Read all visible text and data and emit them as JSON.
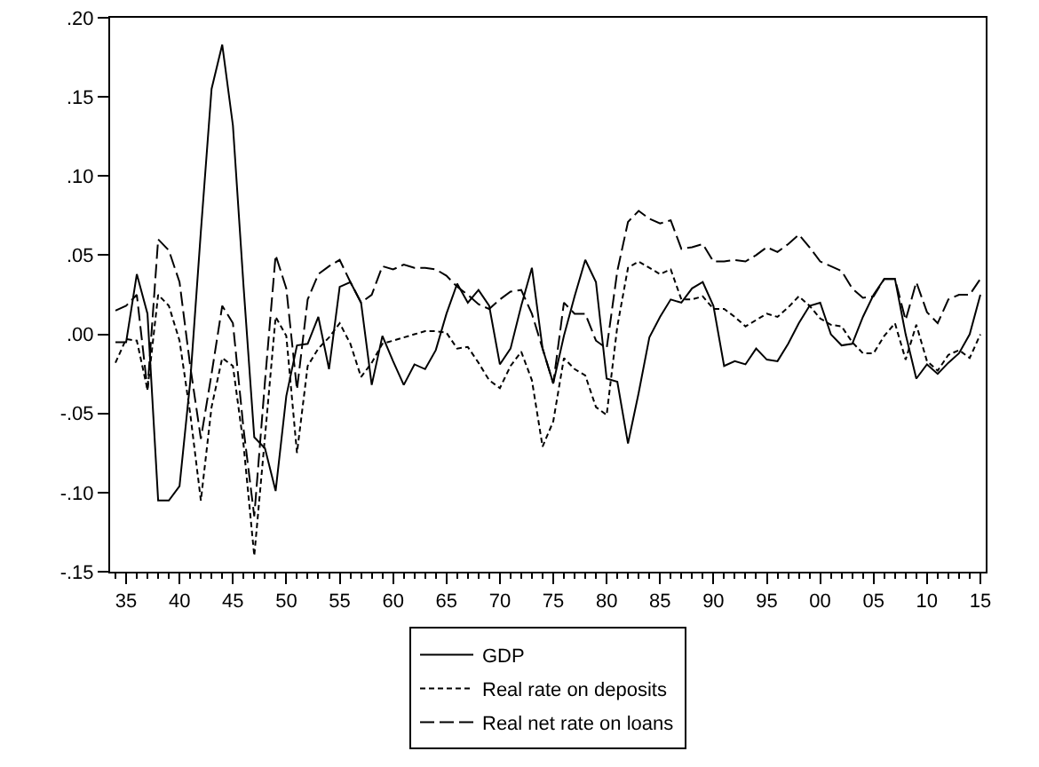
{
  "chart_data": {
    "type": "line",
    "x": [
      1934,
      1935,
      1936,
      1937,
      1938,
      1939,
      1940,
      1941,
      1942,
      1943,
      1944,
      1945,
      1946,
      1947,
      1948,
      1949,
      1950,
      1951,
      1952,
      1953,
      1954,
      1955,
      1956,
      1957,
      1958,
      1959,
      1960,
      1961,
      1962,
      1963,
      1964,
      1965,
      1966,
      1967,
      1968,
      1969,
      1970,
      1971,
      1972,
      1973,
      1974,
      1975,
      1976,
      1977,
      1978,
      1979,
      1980,
      1981,
      1982,
      1983,
      1984,
      1985,
      1986,
      1987,
      1988,
      1989,
      1990,
      1991,
      1992,
      1993,
      1994,
      1995,
      1996,
      1997,
      1998,
      1999,
      2000,
      2001,
      2002,
      2003,
      2004,
      2005,
      2006,
      2007,
      2008,
      2009,
      2010,
      2011,
      2012,
      2013,
      2014,
      2015
    ],
    "series": [
      {
        "name": "GDP",
        "color": "#000000",
        "line_style": "solid",
        "values": [
          -0.005,
          -0.005,
          0.038,
          0.013,
          -0.105,
          -0.105,
          -0.096,
          -0.03,
          0.065,
          0.155,
          0.183,
          0.132,
          0.03,
          -0.065,
          -0.072,
          -0.099,
          -0.039,
          -0.007,
          -0.006,
          0.011,
          -0.022,
          0.03,
          0.033,
          0.02,
          -0.032,
          -0.001,
          -0.017,
          -0.032,
          -0.019,
          -0.022,
          -0.01,
          0.013,
          0.032,
          0.02,
          0.028,
          0.018,
          -0.019,
          -0.009,
          0.018,
          0.042,
          -0.009,
          -0.031,
          -0.001,
          0.024,
          0.047,
          0.033,
          -0.028,
          -0.03,
          -0.069,
          -0.037,
          -0.002,
          0.011,
          0.022,
          0.02,
          0.029,
          0.033,
          0.018,
          -0.02,
          -0.017,
          -0.019,
          -0.009,
          -0.016,
          -0.017,
          -0.006,
          0.007,
          0.018,
          0.02,
          0.0,
          -0.007,
          -0.006,
          0.011,
          0.025,
          0.035,
          0.035,
          0.0,
          -0.028,
          -0.019,
          -0.025,
          -0.018,
          -0.012,
          0.0,
          0.025
        ]
      },
      {
        "name": "Real rate on deposits",
        "color": "#000000",
        "line_style": "dashed",
        "values": [
          -0.018,
          -0.003,
          -0.004,
          -0.035,
          0.025,
          0.018,
          -0.004,
          -0.05,
          -0.105,
          -0.046,
          -0.015,
          -0.02,
          -0.07,
          -0.14,
          -0.065,
          0.011,
          -0.001,
          -0.075,
          -0.02,
          -0.009,
          -0.002,
          0.007,
          -0.006,
          -0.027,
          -0.018,
          -0.006,
          -0.004,
          -0.002,
          0.0,
          0.002,
          0.002,
          0.001,
          -0.009,
          -0.008,
          -0.018,
          -0.029,
          -0.034,
          -0.02,
          -0.011,
          -0.029,
          -0.071,
          -0.055,
          -0.015,
          -0.022,
          -0.026,
          -0.046,
          -0.051,
          0.005,
          0.042,
          0.046,
          0.042,
          0.038,
          0.041,
          0.022,
          0.022,
          0.024,
          0.016,
          0.016,
          0.011,
          0.005,
          0.009,
          0.013,
          0.011,
          0.017,
          0.024,
          0.018,
          0.01,
          0.006,
          0.005,
          -0.005,
          -0.012,
          -0.012,
          -0.001,
          0.007,
          -0.016,
          0.006,
          -0.017,
          -0.023,
          -0.013,
          -0.01,
          -0.015,
          0.0
        ]
      },
      {
        "name": "Real net rate on loans",
        "color": "#000000",
        "line_style": "dashed",
        "values": [
          0.015,
          0.018,
          0.025,
          -0.035,
          0.06,
          0.053,
          0.033,
          -0.02,
          -0.066,
          -0.025,
          0.018,
          0.007,
          -0.06,
          -0.115,
          -0.03,
          0.05,
          0.029,
          -0.035,
          0.022,
          0.038,
          0.043,
          0.047,
          0.033,
          0.02,
          0.025,
          0.043,
          0.041,
          0.044,
          0.042,
          0.042,
          0.041,
          0.037,
          0.03,
          0.025,
          0.019,
          0.016,
          0.022,
          0.027,
          0.028,
          0.013,
          -0.009,
          -0.031,
          0.02,
          0.013,
          0.013,
          -0.004,
          -0.009,
          0.04,
          0.071,
          0.078,
          0.073,
          0.07,
          0.072,
          0.054,
          0.055,
          0.057,
          0.046,
          0.046,
          0.047,
          0.046,
          0.05,
          0.055,
          0.052,
          0.057,
          0.063,
          0.055,
          0.046,
          0.043,
          0.04,
          0.029,
          0.023,
          0.024,
          0.035,
          0.035,
          0.009,
          0.033,
          0.014,
          0.007,
          0.022,
          0.025,
          0.025,
          0.035
        ]
      }
    ],
    "xlim": [
      1933.5,
      2015.5
    ],
    "xticks": [
      {
        "value": 1935,
        "label": "35"
      },
      {
        "value": 1940,
        "label": "40"
      },
      {
        "value": 1945,
        "label": "45"
      },
      {
        "value": 1950,
        "label": "50"
      },
      {
        "value": 1955,
        "label": "55"
      },
      {
        "value": 1960,
        "label": "60"
      },
      {
        "value": 1965,
        "label": "65"
      },
      {
        "value": 1970,
        "label": "70"
      },
      {
        "value": 1975,
        "label": "75"
      },
      {
        "value": 1980,
        "label": "80"
      },
      {
        "value": 1985,
        "label": "85"
      },
      {
        "value": 1990,
        "label": "90"
      },
      {
        "value": 1995,
        "label": "95"
      },
      {
        "value": 2000,
        "label": "00"
      },
      {
        "value": 2005,
        "label": "05"
      },
      {
        "value": 2010,
        "label": "10"
      },
      {
        "value": 2015,
        "label": "15"
      }
    ],
    "ylim": [
      -0.15,
      0.2
    ],
    "yticks": [
      {
        "value": -0.15,
        "label": "-.15"
      },
      {
        "value": -0.1,
        "label": "-.10"
      },
      {
        "value": -0.05,
        "label": "-.05"
      },
      {
        "value": 0,
        "label": ".00"
      },
      {
        "value": 0.05,
        "label": ".05"
      },
      {
        "value": 0.1,
        "label": ".10"
      },
      {
        "value": 0.15,
        "label": ".15"
      },
      {
        "value": 0.2,
        "label": ".20"
      }
    ],
    "grid": false,
    "legend": "bottom",
    "marker": "none"
  }
}
